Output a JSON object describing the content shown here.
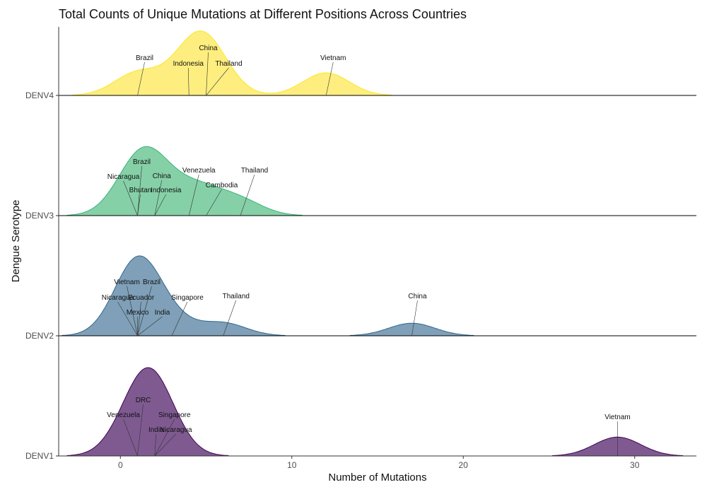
{
  "chart_data": {
    "type": "area",
    "subtype": "ridgeline",
    "title": "Total Counts of Unique Mutations at Different Positions Across Countries",
    "xlabel": "Number of Mutations",
    "ylabel": "Dengue Serotype",
    "xlim": [
      -3.6,
      33.6
    ],
    "x_ticks": [
      0,
      10,
      20,
      30
    ],
    "grid": false,
    "legend": "none",
    "categories": [
      "DENV1",
      "DENV2",
      "DENV3",
      "DENV4"
    ],
    "series": [
      {
        "serotype": "DENV1",
        "color": "#440154",
        "fill": "#7f5a91",
        "points": [
          {
            "country": "DRC",
            "x": 1
          },
          {
            "country": "Venezuela",
            "x": 1
          },
          {
            "country": "Singapore",
            "x": 2
          },
          {
            "country": "India",
            "x": 2
          },
          {
            "country": "Nicaragua",
            "x": 2
          },
          {
            "country": "Vietnam",
            "x": 29
          }
        ]
      },
      {
        "serotype": "DENV2",
        "color": "#31688e",
        "fill": "#7fa0b8",
        "points": [
          {
            "country": "Vietnam",
            "x": 1
          },
          {
            "country": "Brazil",
            "x": 1
          },
          {
            "country": "Nicaragua",
            "x": 1
          },
          {
            "country": "Ecuador",
            "x": 1
          },
          {
            "country": "Mexico",
            "x": 1
          },
          {
            "country": "India",
            "x": 1
          },
          {
            "country": "Singapore",
            "x": 3
          },
          {
            "country": "Thailand",
            "x": 6
          },
          {
            "country": "China",
            "x": 17
          }
        ]
      },
      {
        "serotype": "DENV3",
        "color": "#35b779",
        "fill": "#86d0a7",
        "points": [
          {
            "country": "Brazil",
            "x": 1
          },
          {
            "country": "Nicaragua",
            "x": 1
          },
          {
            "country": "Bhutan",
            "x": 1
          },
          {
            "country": "China",
            "x": 2
          },
          {
            "country": "Indonesia",
            "x": 2
          },
          {
            "country": "Venezuela",
            "x": 4
          },
          {
            "country": "Cambodia",
            "x": 5
          },
          {
            "country": "Thailand",
            "x": 7
          }
        ]
      },
      {
        "serotype": "DENV4",
        "color": "#fde725",
        "fill": "#fdee7f",
        "points": [
          {
            "country": "Brazil",
            "x": 1
          },
          {
            "country": "Indonesia",
            "x": 4
          },
          {
            "country": "China",
            "x": 5
          },
          {
            "country": "Thailand",
            "x": 5
          },
          {
            "country": "Vietnam",
            "x": 12
          }
        ]
      }
    ]
  }
}
